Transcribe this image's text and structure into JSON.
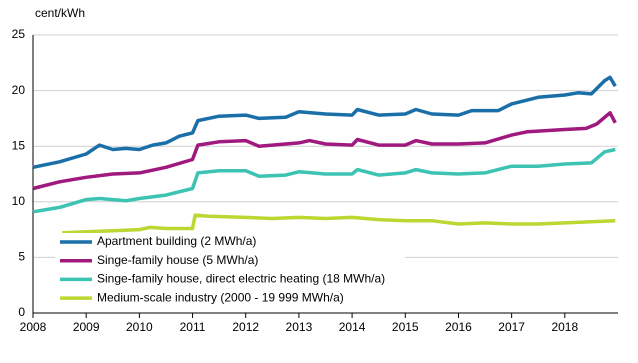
{
  "chart_data": {
    "type": "line",
    "y_label": "cent/kWh",
    "xlim": [
      2008,
      2019
    ],
    "xticks": [
      2008,
      2009,
      2010,
      2011,
      2012,
      2013,
      2014,
      2015,
      2016,
      2017,
      2018
    ],
    "ylim": [
      0,
      25
    ],
    "yticks": [
      0,
      5,
      10,
      15,
      20,
      25
    ],
    "grid": true,
    "legend": "lower left",
    "series": [
      {
        "name": "Apartment building (2 MWh/a)",
        "color": "#1b6fa8",
        "x": [
          2008,
          2008.5,
          2009,
          2009.25,
          2009.5,
          2009.75,
          2010,
          2010.25,
          2010.5,
          2010.75,
          2011,
          2011.1,
          2011.5,
          2012,
          2012.25,
          2012.75,
          2013,
          2013.5,
          2014,
          2014.1,
          2014.5,
          2015,
          2015.2,
          2015.5,
          2016,
          2016.25,
          2016.75,
          2017,
          2017.5,
          2018,
          2018.25,
          2018.5,
          2018.75,
          2018.85,
          2018.95
        ],
        "values": [
          13.1,
          13.6,
          14.3,
          15.1,
          14.7,
          14.8,
          14.7,
          15.1,
          15.3,
          15.9,
          16.2,
          17.3,
          17.7,
          17.8,
          17.5,
          17.6,
          18.1,
          17.9,
          17.8,
          18.3,
          17.8,
          17.9,
          18.3,
          17.9,
          17.8,
          18.2,
          18.2,
          18.8,
          19.4,
          19.6,
          19.8,
          19.7,
          20.9,
          21.2,
          20.4
        ]
      },
      {
        "name": "Singe-family house (5 MWh/a)",
        "color": "#a0197e",
        "x": [
          2008,
          2008.5,
          2009,
          2009.5,
          2010,
          2010.5,
          2011,
          2011.1,
          2011.5,
          2012,
          2012.25,
          2013,
          2013.2,
          2013.5,
          2014,
          2014.1,
          2014.5,
          2015,
          2015.2,
          2015.5,
          2016,
          2016.5,
          2017,
          2017.3,
          2018,
          2018.4,
          2018.6,
          2018.85,
          2018.95
        ],
        "values": [
          11.2,
          11.8,
          12.2,
          12.5,
          12.6,
          13.1,
          13.8,
          15.1,
          15.4,
          15.5,
          15.0,
          15.3,
          15.5,
          15.2,
          15.1,
          15.6,
          15.1,
          15.1,
          15.5,
          15.2,
          15.2,
          15.3,
          16.0,
          16.3,
          16.5,
          16.6,
          17.0,
          18.0,
          17.1
        ]
      },
      {
        "name": "Singe-family house, direct electric heating (18 MWh/a)",
        "color": "#3cc3b3",
        "x": [
          2008,
          2008.5,
          2009,
          2009.25,
          2009.75,
          2010,
          2010.5,
          2011,
          2011.1,
          2011.5,
          2012,
          2012.25,
          2012.75,
          2013,
          2013.5,
          2014,
          2014.1,
          2014.5,
          2015,
          2015.2,
          2015.5,
          2016,
          2016.5,
          2017,
          2017.5,
          2018,
          2018.5,
          2018.75,
          2018.95
        ],
        "values": [
          9.1,
          9.5,
          10.2,
          10.3,
          10.1,
          10.3,
          10.6,
          11.2,
          12.6,
          12.8,
          12.8,
          12.3,
          12.4,
          12.7,
          12.5,
          12.5,
          12.9,
          12.4,
          12.6,
          12.9,
          12.6,
          12.5,
          12.6,
          13.2,
          13.2,
          13.4,
          13.5,
          14.5,
          14.7
        ]
      },
      {
        "name": "Medium-scale industry (2000 - 19 999 MWh/a)",
        "color": "#bdd631",
        "x": [
          2008.55,
          2009,
          2009.5,
          2010,
          2010.2,
          2010.5,
          2011,
          2011.05,
          2011.3,
          2012,
          2012.5,
          2013,
          2013.5,
          2014,
          2014.5,
          2015,
          2015.5,
          2016,
          2016.5,
          2017,
          2017.5,
          2018,
          2018.5,
          2018.95
        ],
        "values": [
          7.2,
          7.3,
          7.4,
          7.5,
          7.7,
          7.6,
          7.6,
          8.8,
          8.7,
          8.6,
          8.5,
          8.6,
          8.5,
          8.6,
          8.4,
          8.3,
          8.3,
          8.0,
          8.1,
          8.0,
          8.0,
          8.1,
          8.2,
          8.3
        ]
      }
    ]
  }
}
